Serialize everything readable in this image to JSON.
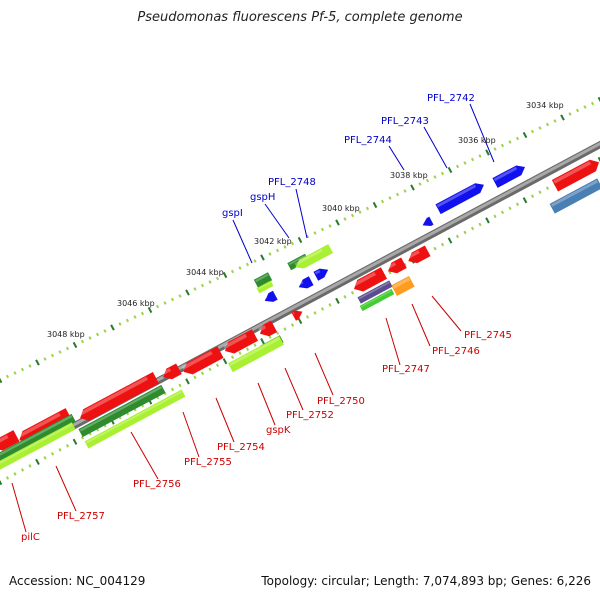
{
  "title": "Pseudomonas fluorescens Pf-5, complete genome",
  "accession": "Accession: NC_004129",
  "summary": "Topology: circular; Length: 7,074,893 bp; Genes: 6,226",
  "colors": {
    "backbone": "#8f8f8f",
    "red": "#ee1111",
    "blue": "#1111ee",
    "darkgreen": "#2e8b2e",
    "lightgreen": "#aaf032",
    "green": "#44cc33",
    "purple": "#5b4c8f",
    "orange": "#ff9b1e",
    "steelblue": "#4a7fb4",
    "tick_dark": "#2a7a2a",
    "tick_light": "#9ad24a",
    "label_red": "#cc0000",
    "label_blue": "#0000cc"
  },
  "ruler_labels": [
    "3034 kbp",
    "3036 kbp",
    "3038 kbp",
    "3040 kbp",
    "3042 kbp",
    "3044 kbp",
    "3046 kbp",
    "3048 kbp"
  ],
  "gene_labels_top": [
    "PFL_2742",
    "PFL_2743",
    "PFL_2744",
    "PFL_2748",
    "gspH",
    "gspI"
  ],
  "gene_labels_bottom": [
    "PFL_2745",
    "PFL_2746",
    "PFL_2747",
    "PFL_2750",
    "PFL_2752",
    "gspK",
    "PFL_2754",
    "PFL_2755",
    "PFL_2756",
    "PFL_2757",
    "pilC"
  ]
}
